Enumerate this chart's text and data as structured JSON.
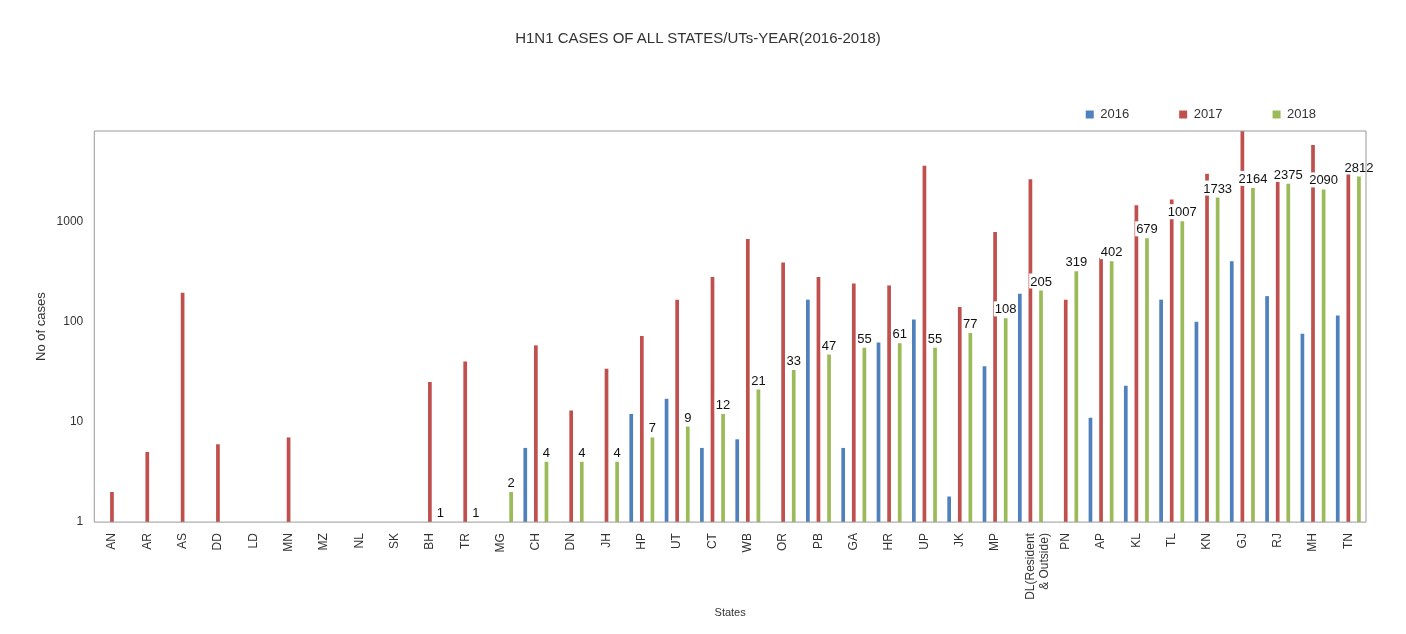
{
  "chart_data": {
    "type": "bar",
    "title": "H1N1 CASES OF ALL STATES/UTs-YEAR(2016-2018)",
    "xlabel": "States",
    "ylabel": "No of cases",
    "categories": [
      "AN",
      "AR",
      "AS",
      "DD",
      "LD",
      "MN",
      "MZ",
      "NL",
      "SK",
      "BH",
      "TR",
      "MG",
      "CH",
      "DN",
      "JH",
      "HP",
      "UT",
      "CT",
      "WB",
      "OR",
      "PB",
      "GA",
      "HR",
      "UP",
      "JK",
      "MP",
      "DL(Resident & Outside)",
      "PN",
      "AP",
      "KL",
      "TL",
      "KN",
      "GJ",
      "RJ",
      "MH",
      "TN"
    ],
    "series": [
      {
        "name": "2016",
        "color": "#4f81bd",
        "values": [
          null,
          null,
          null,
          null,
          null,
          null,
          null,
          null,
          null,
          null,
          null,
          null,
          5.5,
          null,
          null,
          12,
          17,
          5.5,
          6.7,
          null,
          166,
          5.5,
          62,
          105,
          1.8,
          36,
          190,
          null,
          11,
          23,
          166,
          100,
          400,
          180,
          76,
          115
        ]
      },
      {
        "name": "2017",
        "color": "#c0504d",
        "values": [
          2,
          5,
          195,
          6,
          null,
          7,
          null,
          null,
          null,
          25,
          40,
          null,
          58,
          13,
          34,
          72,
          166,
          280,
          670,
          390,
          280,
          240,
          230,
          3600,
          140,
          785,
          2640,
          166,
          435,
          1450,
          1660,
          3000,
          8000,
          2500,
          5800,
          3000
        ]
      },
      {
        "name": "2018",
        "color": "#9bbb59",
        "values": [
          null,
          null,
          null,
          null,
          null,
          null,
          null,
          null,
          null,
          1,
          1,
          2,
          4,
          4,
          4,
          7,
          9,
          12,
          21,
          33,
          47,
          55,
          61,
          55,
          77,
          108,
          205,
          319,
          402,
          679,
          1007,
          1733,
          2164,
          2375,
          2090,
          2812
        ],
        "value_labels": [
          null,
          null,
          null,
          null,
          null,
          null,
          null,
          null,
          null,
          "1",
          "1",
          "2",
          "4",
          "4",
          "4",
          "7",
          "9",
          "12",
          "21",
          "33",
          "47",
          "55",
          "61",
          "55",
          "77",
          "108",
          "205",
          "319",
          "402",
          "679",
          "1007",
          "1733",
          "2164",
          "2375",
          "2090",
          "2812"
        ]
      }
    ],
    "log": "y",
    "ylim": [
      1,
      8000
    ],
    "yticks": [
      1,
      10,
      100,
      1000
    ],
    "grid": false,
    "legend": "top right"
  }
}
